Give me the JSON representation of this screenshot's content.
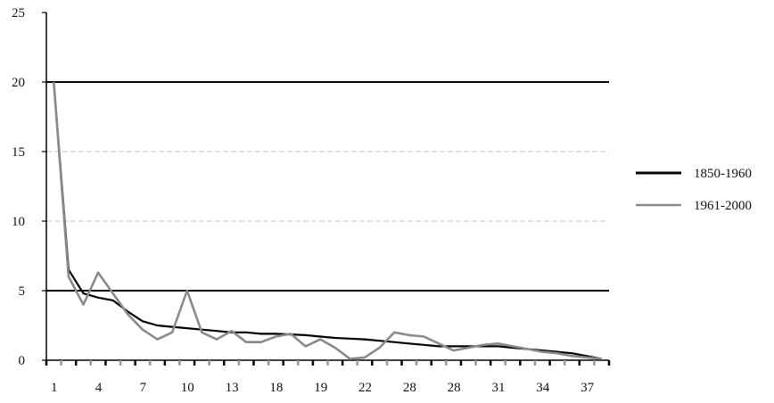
{
  "chart_data": {
    "type": "line",
    "title": "",
    "xlabel": "",
    "ylabel": "",
    "ylim": [
      0,
      25
    ],
    "yticks": [
      "0",
      "5",
      "10",
      "15",
      "20",
      "25"
    ],
    "x_tick_labels": [
      "1",
      "4",
      "7",
      "10",
      "13",
      "18",
      "19",
      "22",
      "28",
      "28",
      "31",
      "34",
      "37"
    ],
    "grid": "horizontal",
    "legend_position": "right",
    "colors": {
      "series1": "#000000",
      "series2": "#8a8a8a",
      "grid": "#000000",
      "grid_light": "#d8d8d8"
    },
    "series": [
      {
        "name": "1850-1960",
        "values": [
          20,
          6.5,
          4.8,
          4.5,
          4.3,
          3.5,
          2.8,
          2.5,
          2.4,
          2.3,
          2.2,
          2.1,
          2.0,
          2.0,
          1.9,
          1.9,
          1.85,
          1.8,
          1.7,
          1.6,
          1.55,
          1.5,
          1.4,
          1.3,
          1.2,
          1.1,
          1.0,
          1.0,
          1.0,
          1.0,
          1.0,
          0.9,
          0.8,
          0.7,
          0.6,
          0.5,
          0.3,
          0.1
        ]
      },
      {
        "name": "1961-2000",
        "values": [
          20,
          6.0,
          4.0,
          6.3,
          4.8,
          3.3,
          2.2,
          1.5,
          2.0,
          5.0,
          2.0,
          1.5,
          2.1,
          1.3,
          1.3,
          1.7,
          1.9,
          1.0,
          1.5,
          0.9,
          0.1,
          0.2,
          0.9,
          2.0,
          1.8,
          1.7,
          1.2,
          0.7,
          0.9,
          1.1,
          1.2,
          1.0,
          0.8,
          0.6,
          0.5,
          0.3,
          0.2,
          0.1
        ]
      }
    ]
  }
}
